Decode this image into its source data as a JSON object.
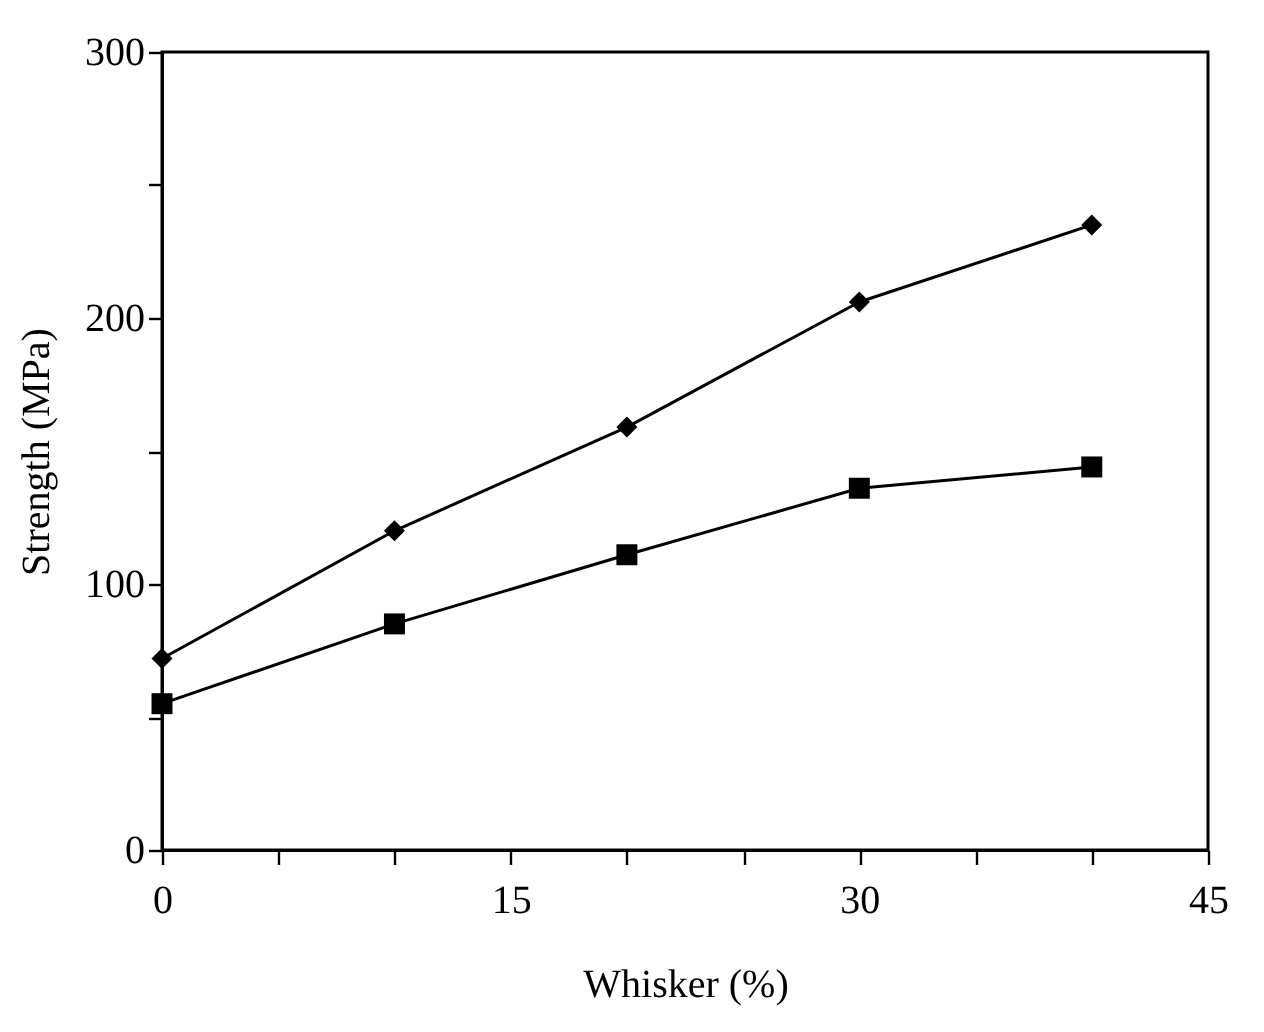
{
  "chart_data": {
    "type": "line",
    "xlabel": "Whisker (%)",
    "ylabel": "Strength (MPa)",
    "x": [
      0,
      10,
      20,
      30,
      40
    ],
    "series": [
      {
        "color": "#000000",
        "marker": "diamond",
        "values": [
          72,
          120,
          159,
          206,
          235
        ]
      },
      {
        "color": "#000000",
        "marker": "square",
        "values": [
          55,
          85,
          111,
          136,
          144
        ]
      }
    ],
    "xlim": [
      0,
      45
    ],
    "xticks": [
      0,
      {
        "value": 5,
        "label": null
      },
      {
        "value": 10,
        "label": null
      },
      15,
      {
        "value": 20,
        "label": null
      },
      {
        "value": 25,
        "label": null
      },
      30,
      {
        "value": 35,
        "label": null
      },
      {
        "value": 40,
        "label": null
      },
      45
    ],
    "ylim": [
      0,
      300
    ],
    "yticks": [
      0,
      {
        "value": 50,
        "label": null
      },
      100,
      {
        "value": 150,
        "label": null
      },
      200,
      {
        "value": 250,
        "label": null
      },
      300
    ],
    "grid": false,
    "legend": false,
    "line_style": "solid"
  }
}
